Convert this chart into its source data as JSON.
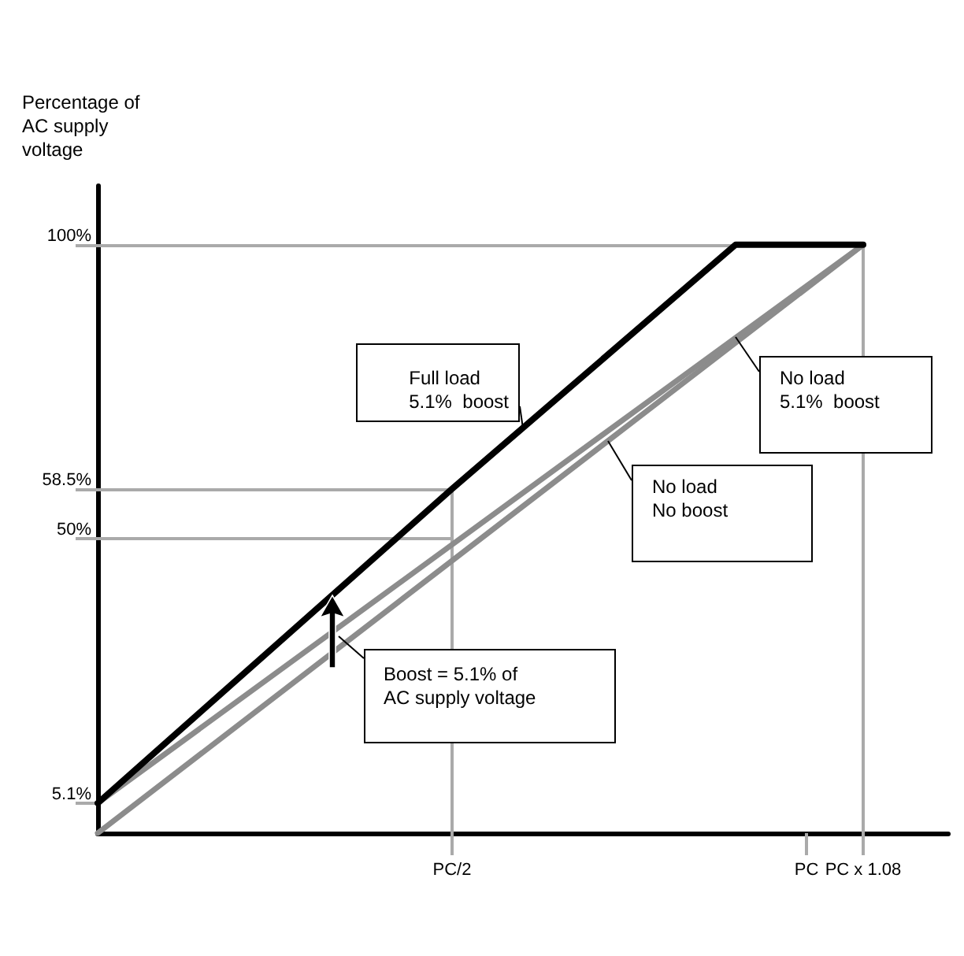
{
  "chart_data": {
    "type": "line",
    "ylabel": "Percentage of AC supply voltage",
    "categories": [
      null,
      null,
      null,
      null,
      null,
      null,
      null,
      null,
      null,
      null,
      null,
      null,
      null,
      null,
      null,
      null,
      null,
      null,
      null,
      null,
      null,
      null,
      null,
      null,
      null,
      "PC/2",
      null,
      null,
      null,
      null,
      null,
      null,
      null,
      null,
      null,
      null,
      null,
      null,
      null,
      null,
      null,
      null,
      null,
      null,
      null,
      null,
      null,
      null,
      null,
      null,
      "PC",
      null,
      null,
      null,
      "PC x 1.08",
      null,
      null,
      null,
      null,
      null,
      null
    ],
    "series": [
      {
        "name": "Full load\n5.1%  boost",
        "color": "#000000",
        "values": [
          5.1,
          null,
          null,
          null,
          null,
          null,
          null,
          null,
          null,
          null,
          null,
          null,
          null,
          null,
          null,
          null,
          null,
          null,
          null,
          null,
          null,
          null,
          null,
          null,
          null,
          58.5,
          null,
          null,
          null,
          null,
          null,
          null,
          null,
          null,
          null,
          null,
          null,
          null,
          null,
          null,
          null,
          null,
          null,
          null,
          null,
          100,
          null,
          null,
          null,
          null,
          null,
          null,
          null,
          null,
          100,
          null,
          null,
          null,
          null,
          null,
          null
        ]
      },
      {
        "name": "No load\n5.1%  boost",
        "color": "#8c8c8c",
        "values": [
          5.1,
          null,
          null,
          null,
          null,
          null,
          null,
          null,
          null,
          null,
          null,
          null,
          null,
          null,
          null,
          null,
          null,
          null,
          null,
          null,
          null,
          null,
          null,
          null,
          null,
          null,
          null,
          null,
          null,
          null,
          null,
          null,
          null,
          null,
          null,
          null,
          null,
          null,
          null,
          null,
          null,
          null,
          null,
          null,
          null,
          null,
          null,
          null,
          null,
          null,
          null,
          null,
          null,
          null,
          100,
          null,
          null,
          null,
          null,
          null,
          null
        ]
      },
      {
        "name": "No load\nNo boost",
        "color": "#8c8c8c",
        "values": [
          0,
          null,
          null,
          null,
          null,
          null,
          null,
          null,
          null,
          null,
          null,
          null,
          null,
          null,
          null,
          null,
          null,
          null,
          null,
          null,
          null,
          null,
          null,
          null,
          null,
          null,
          null,
          null,
          null,
          null,
          null,
          null,
          null,
          null,
          null,
          null,
          null,
          null,
          null,
          null,
          null,
          null,
          null,
          null,
          null,
          null,
          null,
          null,
          null,
          null,
          null,
          null,
          null,
          null,
          100,
          null,
          null,
          null,
          null,
          null,
          null
        ]
      }
    ],
    "ylim": [
      0,
      110
    ],
    "yticks": [
      {
        "value": 5.1,
        "label": "5.1%"
      },
      {
        "value": 50,
        "label": "50%"
      },
      {
        "value": 58.5,
        "label": "58.5%"
      },
      {
        "value": 100,
        "label": "100%"
      }
    ],
    "ref_lines": [
      {
        "axis": "y",
        "value": 100,
        "color": "#aaaaaa"
      },
      {
        "axis": "y",
        "value": 58.5,
        "color": "#aaaaaa"
      },
      {
        "axis": "y",
        "value": 50,
        "color": "#aaaaaa"
      },
      {
        "axis": "x",
        "value": "PC/2",
        "color": "#aaaaaa"
      },
      {
        "axis": "x",
        "value": "PC x 1.08",
        "color": "#aaaaaa"
      }
    ],
    "annotations": [
      "Boost = 5.1% of\nAC supply voltage"
    ],
    "marker": "none",
    "line_style": "solid"
  }
}
